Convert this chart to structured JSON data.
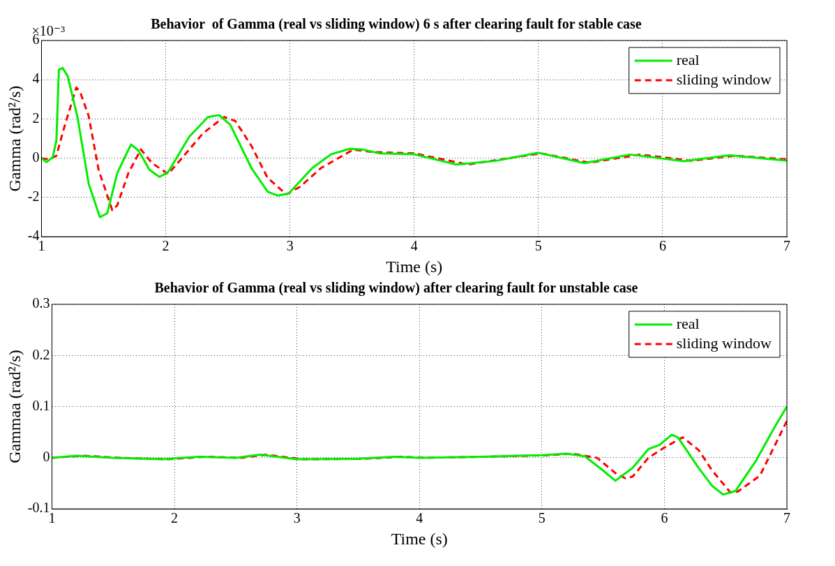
{
  "chart_data": [
    {
      "type": "line",
      "title": "Behavior  of Gamma (real vs sliding window) 6 s after clearing fault for stable case",
      "xlabel": "Time (s)",
      "ylabel": "Gamma (rad²/s)",
      "xlim": [
        1,
        7
      ],
      "xticks": [
        1,
        2,
        3,
        4,
        5,
        6,
        7
      ],
      "ylim": [
        -4,
        6
      ],
      "yticks": [
        -4,
        -2,
        0,
        2,
        4,
        6
      ],
      "annotations": [
        "×10⁻³"
      ],
      "grid": true,
      "legend": "top right",
      "marker": "none",
      "series": [
        {
          "name": "real",
          "color": "#00ee00",
          "line_style": "solid",
          "x": [
            1,
            1.04,
            1.09,
            1.12,
            1.14,
            1.17,
            1.21,
            1.29,
            1.38,
            1.47,
            1.53,
            1.61,
            1.72,
            1.78,
            1.87,
            1.95,
            2.02,
            2.19,
            2.34,
            2.43,
            2.52,
            2.69,
            2.82,
            2.9,
            2.99,
            3.18,
            3.33,
            3.48,
            3.59,
            3.72,
            4.0,
            4.34,
            4.66,
            5.0,
            5.37,
            5.74,
            6.17,
            6.54,
            7.0
          ],
          "values": [
            0,
            -0.2,
            0.05,
            0.9,
            4.5,
            4.6,
            4.2,
            2.1,
            -1.3,
            -3.0,
            -2.8,
            -0.75,
            0.7,
            0.4,
            -0.6,
            -0.95,
            -0.7,
            1.1,
            2.1,
            2.2,
            1.7,
            -0.5,
            -1.7,
            -1.9,
            -1.8,
            -0.5,
            0.2,
            0.48,
            0.44,
            0.25,
            0.2,
            -0.32,
            -0.13,
            0.28,
            -0.25,
            0.19,
            -0.15,
            0.15,
            -0.13
          ]
        },
        {
          "name": "sliding window",
          "color": "#ff0000",
          "line_style": "dashed",
          "x": [
            1,
            1.06,
            1.12,
            1.18,
            1.28,
            1.31,
            1.38,
            1.46,
            1.57,
            1.61,
            1.7,
            1.8,
            1.89,
            2.02,
            2.13,
            2.3,
            2.47,
            2.56,
            2.69,
            2.82,
            2.97,
            3.08,
            3.25,
            3.51,
            3.66,
            4.0,
            4.43,
            5.02,
            5.41,
            5.82,
            6.23,
            6.58,
            7.0
          ],
          "values": [
            0,
            -0.06,
            0.13,
            1.5,
            3.6,
            3.4,
            2.15,
            -0.6,
            -2.65,
            -2.4,
            -0.75,
            0.45,
            -0.25,
            -0.8,
            0,
            1.27,
            2.1,
            1.9,
            0.63,
            -1.0,
            -1.84,
            -1.46,
            -0.5,
            0.44,
            0.32,
            0.25,
            -0.32,
            0.25,
            -0.23,
            0.19,
            -0.13,
            0.13,
            -0.06
          ]
        }
      ]
    },
    {
      "type": "line",
      "title": "Behavior of Gamma (real vs sliding window) after clearing fault for unstable case",
      "xlabel": "Time (s)",
      "ylabel": "Gammaa (rad²/s)",
      "xlim": [
        1,
        7
      ],
      "xticks": [
        1,
        2,
        3,
        4,
        5,
        6,
        7
      ],
      "ylim": [
        -0.1,
        0.3
      ],
      "yticks": [
        -0.1,
        0,
        0.1,
        0.2,
        0.3
      ],
      "grid": true,
      "legend": "top right",
      "marker": "none",
      "series": [
        {
          "name": "real",
          "color": "#00ee00",
          "line_style": "solid",
          "x": [
            1,
            1.2,
            1.5,
            1.9,
            2.2,
            2.5,
            2.7,
            3.0,
            3.5,
            3.8,
            4.0,
            4.5,
            5.0,
            5.2,
            5.35,
            5.5,
            5.6,
            5.74,
            5.87,
            5.96,
            6.06,
            6.11,
            6.28,
            6.39,
            6.48,
            6.58,
            6.75,
            6.9,
            7.0
          ],
          "values": [
            0,
            0.004,
            0,
            -0.003,
            0.002,
            0,
            0.006,
            -0.003,
            -0.002,
            0.002,
            0,
            0.002,
            0.005,
            0.008,
            0.003,
            -0.025,
            -0.045,
            -0.02,
            0.017,
            0.025,
            0.045,
            0.04,
            -0.02,
            -0.055,
            -0.072,
            -0.065,
            -0.005,
            0.06,
            0.1
          ]
        },
        {
          "name": "sliding window",
          "color": "#ff0000",
          "line_style": "dashed",
          "x": [
            1,
            1.25,
            1.55,
            1.95,
            2.25,
            2.55,
            2.75,
            3.05,
            3.55,
            3.85,
            4.05,
            4.55,
            5.05,
            5.25,
            5.45,
            5.6,
            5.68,
            5.74,
            5.87,
            6.0,
            6.15,
            6.28,
            6.39,
            6.54,
            6.6,
            6.78,
            7.0
          ],
          "values": [
            0,
            0.004,
            0,
            -0.003,
            0.002,
            0,
            0.006,
            -0.003,
            -0.002,
            0.002,
            0,
            0.002,
            0.005,
            0.008,
            0,
            -0.03,
            -0.04,
            -0.037,
            0,
            0.02,
            0.04,
            0.015,
            -0.025,
            -0.068,
            -0.066,
            -0.035,
            0.072
          ]
        }
      ]
    }
  ]
}
